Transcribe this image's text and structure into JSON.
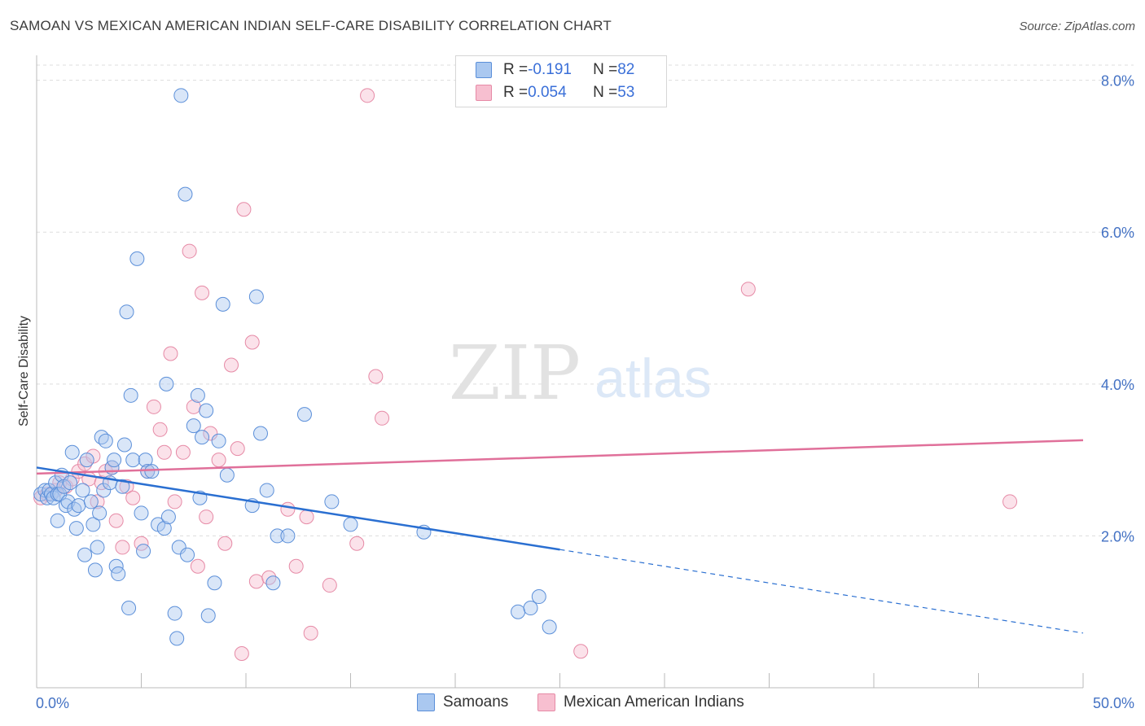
{
  "title": "SAMOAN VS MEXICAN AMERICAN INDIAN SELF-CARE DISABILITY CORRELATION CHART",
  "source": "Source: ZipAtlas.com",
  "watermark": {
    "zip": "ZIP",
    "atlas": "atlas"
  },
  "colors": {
    "samoans_fill": "#aac8f0",
    "samoans_stroke": "#5b8fd9",
    "samoans_line": "#2a6fd1",
    "mexican_fill": "#f7bfd0",
    "mexican_stroke": "#e68aa6",
    "mexican_line": "#e0709a",
    "tick_label": "#4472c4",
    "grid": "#dddddd"
  },
  "legend": {
    "rows": [
      {
        "r_label": "R = ",
        "r_value": "-0.191",
        "n_label": "N = ",
        "n_value": "82"
      },
      {
        "r_label": "R = ",
        "r_value": "0.054",
        "n_label": "N = ",
        "n_value": "53"
      }
    ]
  },
  "chart_data": {
    "type": "scatter",
    "ylabel": "Self-Care Disability",
    "x_axis": {
      "min": 0,
      "max": 50,
      "tick_labels": [
        "0.0%",
        "50.0%"
      ]
    },
    "y_axis": {
      "min": 0,
      "max": 8.2,
      "ticks": [
        2.0,
        4.0,
        6.0,
        8.0
      ],
      "tick_labels": [
        "2.0%",
        "4.0%",
        "6.0%",
        "8.0%"
      ]
    },
    "grid": true,
    "legend_position": "bottom",
    "series": [
      {
        "name": "Samoans",
        "trend": {
          "x0": 0,
          "y0": 2.9,
          "x1": 25,
          "y1": 1.82,
          "dash_to_x": 50,
          "dash_to_y": 0.72
        },
        "points": [
          [
            0.2,
            2.55
          ],
          [
            0.4,
            2.6
          ],
          [
            0.5,
            2.5
          ],
          [
            0.6,
            2.6
          ],
          [
            0.7,
            2.55
          ],
          [
            0.8,
            2.5
          ],
          [
            0.9,
            2.7
          ],
          [
            1.0,
            2.55
          ],
          [
            1.0,
            2.2
          ],
          [
            1.1,
            2.55
          ],
          [
            1.2,
            2.8
          ],
          [
            1.3,
            2.65
          ],
          [
            1.4,
            2.4
          ],
          [
            1.5,
            2.45
          ],
          [
            1.6,
            2.7
          ],
          [
            1.7,
            3.1
          ],
          [
            1.8,
            2.35
          ],
          [
            1.9,
            2.1
          ],
          [
            2.0,
            2.4
          ],
          [
            2.2,
            2.6
          ],
          [
            2.3,
            1.75
          ],
          [
            2.4,
            3.0
          ],
          [
            2.6,
            2.45
          ],
          [
            2.7,
            2.15
          ],
          [
            2.8,
            1.55
          ],
          [
            2.9,
            1.85
          ],
          [
            3.0,
            2.3
          ],
          [
            3.1,
            3.3
          ],
          [
            3.2,
            2.6
          ],
          [
            3.3,
            3.25
          ],
          [
            3.5,
            2.7
          ],
          [
            3.6,
            2.9
          ],
          [
            3.7,
            3.0
          ],
          [
            3.8,
            1.6
          ],
          [
            3.9,
            1.5
          ],
          [
            4.1,
            2.65
          ],
          [
            4.2,
            3.2
          ],
          [
            4.3,
            4.95
          ],
          [
            4.4,
            1.05
          ],
          [
            4.5,
            3.85
          ],
          [
            4.6,
            3.0
          ],
          [
            4.8,
            5.65
          ],
          [
            5.0,
            2.3
          ],
          [
            5.1,
            1.8
          ],
          [
            5.2,
            3.0
          ],
          [
            5.3,
            2.85
          ],
          [
            5.5,
            2.85
          ],
          [
            5.8,
            2.15
          ],
          [
            6.1,
            2.1
          ],
          [
            6.2,
            4.0
          ],
          [
            6.3,
            2.25
          ],
          [
            6.6,
            0.98
          ],
          [
            6.7,
            0.65
          ],
          [
            6.8,
            1.85
          ],
          [
            6.9,
            7.8
          ],
          [
            7.1,
            6.5
          ],
          [
            7.2,
            1.75
          ],
          [
            7.5,
            3.45
          ],
          [
            7.7,
            3.85
          ],
          [
            7.9,
            3.3
          ],
          [
            7.8,
            2.5
          ],
          [
            8.1,
            3.65
          ],
          [
            8.2,
            0.95
          ],
          [
            8.5,
            1.38
          ],
          [
            8.7,
            3.25
          ],
          [
            8.9,
            5.05
          ],
          [
            9.1,
            2.8
          ],
          [
            10.3,
            2.4
          ],
          [
            10.5,
            5.15
          ],
          [
            10.7,
            3.35
          ],
          [
            11.0,
            2.6
          ],
          [
            11.3,
            1.38
          ],
          [
            11.5,
            2.0
          ],
          [
            12.0,
            2.0
          ],
          [
            12.8,
            3.6
          ],
          [
            14.1,
            2.45
          ],
          [
            15.0,
            2.15
          ],
          [
            18.5,
            2.05
          ],
          [
            23.0,
            1.0
          ],
          [
            23.6,
            1.05
          ],
          [
            24.0,
            1.2
          ],
          [
            24.5,
            0.8
          ]
        ]
      },
      {
        "name": "Mexican American Indians",
        "trend": {
          "x0": 0,
          "y0": 2.82,
          "x1": 50,
          "y1": 3.26
        },
        "points": [
          [
            0.2,
            2.5
          ],
          [
            0.5,
            2.55
          ],
          [
            0.9,
            2.6
          ],
          [
            1.1,
            2.7
          ],
          [
            1.4,
            2.65
          ],
          [
            1.7,
            2.75
          ],
          [
            2.0,
            2.85
          ],
          [
            2.3,
            2.95
          ],
          [
            2.5,
            2.75
          ],
          [
            2.7,
            3.05
          ],
          [
            2.9,
            2.45
          ],
          [
            3.1,
            2.7
          ],
          [
            3.3,
            2.85
          ],
          [
            3.6,
            2.9
          ],
          [
            3.8,
            2.2
          ],
          [
            4.1,
            1.85
          ],
          [
            4.3,
            2.65
          ],
          [
            4.6,
            2.5
          ],
          [
            5.0,
            1.9
          ],
          [
            5.3,
            2.85
          ],
          [
            5.6,
            3.7
          ],
          [
            5.9,
            3.4
          ],
          [
            6.1,
            3.1
          ],
          [
            6.4,
            4.4
          ],
          [
            6.6,
            2.45
          ],
          [
            7.0,
            3.1
          ],
          [
            7.3,
            5.75
          ],
          [
            7.5,
            3.7
          ],
          [
            7.7,
            1.6
          ],
          [
            7.9,
            5.2
          ],
          [
            8.1,
            2.25
          ],
          [
            8.3,
            3.35
          ],
          [
            8.7,
            3.0
          ],
          [
            9.0,
            1.9
          ],
          [
            9.3,
            4.25
          ],
          [
            9.6,
            3.15
          ],
          [
            9.8,
            0.45
          ],
          [
            9.9,
            6.3
          ],
          [
            10.3,
            4.55
          ],
          [
            10.5,
            1.4
          ],
          [
            11.1,
            1.45
          ],
          [
            12.0,
            2.35
          ],
          [
            12.4,
            1.6
          ],
          [
            12.9,
            2.25
          ],
          [
            13.1,
            0.72
          ],
          [
            14.0,
            1.35
          ],
          [
            15.3,
            1.9
          ],
          [
            15.8,
            7.8
          ],
          [
            16.2,
            4.1
          ],
          [
            16.5,
            3.55
          ],
          [
            26.0,
            0.48
          ],
          [
            34.0,
            5.25
          ],
          [
            46.5,
            2.45
          ]
        ]
      }
    ]
  },
  "bottom_legend": {
    "samoans": "Samoans",
    "mexican": "Mexican American Indians"
  }
}
